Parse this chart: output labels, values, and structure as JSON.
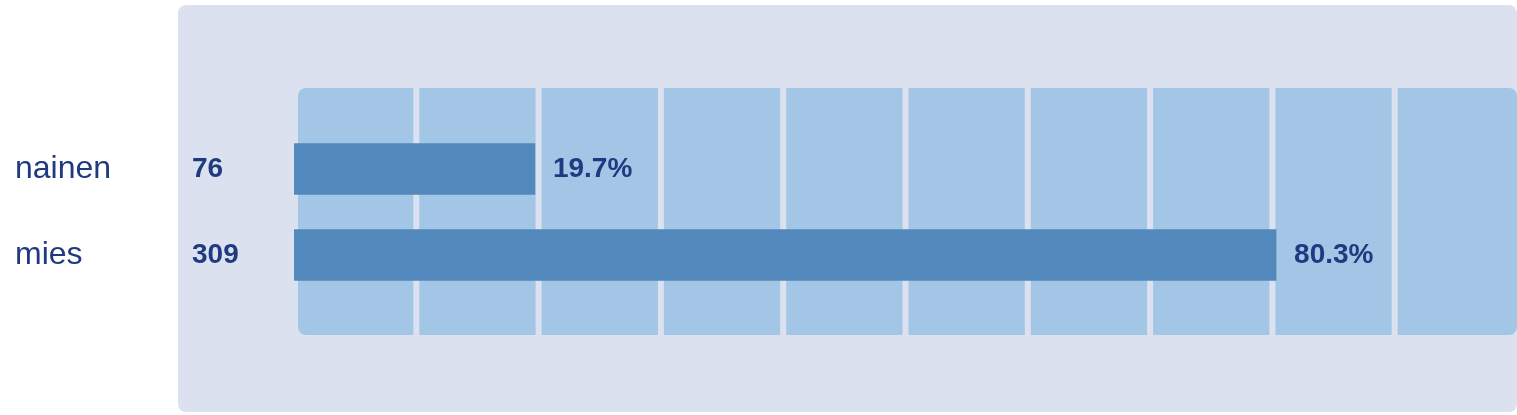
{
  "chart_data": {
    "type": "bar",
    "orientation": "horizontal",
    "categories": [
      "nainen",
      "mies"
    ],
    "values": [
      19.7,
      80.3
    ],
    "color": "#5288bb",
    "value_labels": [
      "19.7%",
      "80.3%"
    ],
    "annotations": [
      "76",
      "309"
    ],
    "xlim": [
      0,
      100
    ],
    "xticks": [
      {
        "value": 0,
        "label": null
      },
      {
        "value": 10,
        "label": null
      },
      {
        "value": 20,
        "label": null
      },
      {
        "value": 30,
        "label": null
      },
      {
        "value": 40,
        "label": null
      },
      {
        "value": 50,
        "label": null
      },
      {
        "value": 60,
        "label": null
      },
      {
        "value": 70,
        "label": null
      },
      {
        "value": 80,
        "label": null
      },
      {
        "value": 90,
        "label": null
      },
      {
        "value": 100,
        "label": null
      }
    ],
    "tick_labels": "y",
    "grid": "x",
    "legend": false
  }
}
